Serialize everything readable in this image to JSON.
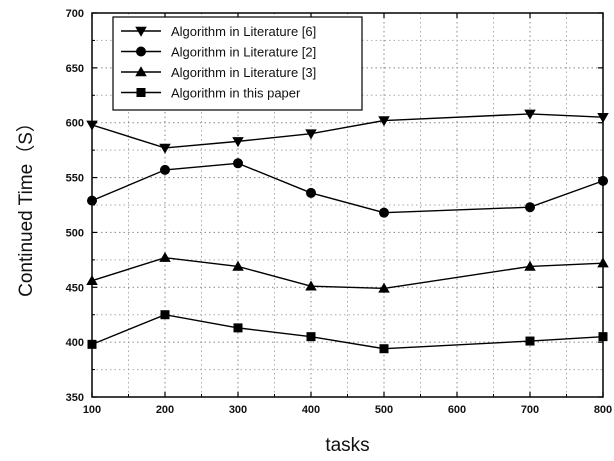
{
  "chart_data": {
    "type": "line",
    "title": "",
    "xlabel": "tasks",
    "ylabel": "Continued Time（S）",
    "x": [
      100,
      200,
      300,
      400,
      500,
      700,
      800
    ],
    "xlim": [
      100,
      800
    ],
    "ylim": [
      350,
      700
    ],
    "xticks": [
      100,
      200,
      300,
      400,
      500,
      600,
      700,
      800
    ],
    "yticks": [
      350,
      400,
      450,
      500,
      550,
      600,
      650,
      700
    ],
    "grid": true,
    "legend_position": "top-left",
    "series": [
      {
        "name": "Algorithm in Literature [6]",
        "marker": "triangle-down",
        "values": [
          598,
          577,
          583,
          590,
          602,
          608,
          605
        ]
      },
      {
        "name": "Algorithm in Literature [2]",
        "marker": "circle",
        "values": [
          529,
          557,
          563,
          536,
          518,
          523,
          547
        ]
      },
      {
        "name": "Algorithm in Literature [3]",
        "marker": "triangle-up",
        "values": [
          456,
          477,
          469,
          451,
          449,
          469,
          472
        ]
      },
      {
        "name": "Algorithm in this paper",
        "marker": "square",
        "values": [
          398,
          425,
          413,
          405,
          394,
          401,
          405
        ]
      }
    ]
  }
}
